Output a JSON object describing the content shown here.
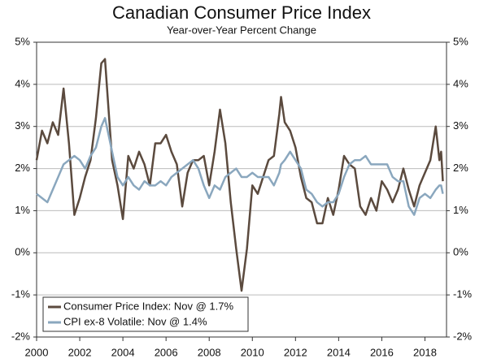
{
  "chart_data": {
    "type": "line",
    "title": "Canadian Consumer Price Index",
    "subtitle": "Year-over-Year Percent Change",
    "x": [
      2000.0,
      2000.25,
      2000.5,
      2000.75,
      2001.0,
      2001.25,
      2001.5,
      2001.75,
      2002.0,
      2002.25,
      2002.5,
      2002.75,
      2003.0,
      2003.17,
      2003.5,
      2003.75,
      2004.0,
      2004.25,
      2004.5,
      2004.75,
      2005.0,
      2005.25,
      2005.5,
      2005.75,
      2006.0,
      2006.25,
      2006.5,
      2006.75,
      2007.0,
      2007.25,
      2007.5,
      2007.75,
      2008.0,
      2008.25,
      2008.5,
      2008.75,
      2009.0,
      2009.25,
      2009.5,
      2009.75,
      2010.0,
      2010.25,
      2010.5,
      2010.75,
      2011.0,
      2011.25,
      2011.33,
      2011.5,
      2011.75,
      2012.0,
      2012.25,
      2012.5,
      2012.75,
      2013.0,
      2013.25,
      2013.5,
      2013.75,
      2014.0,
      2014.25,
      2014.5,
      2014.75,
      2015.0,
      2015.25,
      2015.5,
      2015.75,
      2016.0,
      2016.25,
      2016.5,
      2016.75,
      2017.0,
      2017.25,
      2017.5,
      2017.75,
      2018.0,
      2018.25,
      2018.5,
      2018.67,
      2018.75,
      2018.83
    ],
    "series": [
      {
        "name": "Consumer Price Index: Nov @ 1.7%",
        "color": "#5b4a3e",
        "values": [
          2.2,
          2.9,
          2.6,
          3.1,
          2.8,
          3.9,
          2.6,
          0.9,
          1.3,
          1.8,
          2.2,
          3.2,
          4.5,
          4.6,
          2.2,
          1.6,
          0.8,
          2.3,
          2.0,
          2.4,
          2.1,
          1.6,
          2.6,
          2.6,
          2.8,
          2.4,
          2.1,
          1.1,
          1.9,
          2.2,
          2.2,
          2.3,
          1.6,
          2.4,
          3.4,
          2.6,
          1.2,
          0.1,
          -0.9,
          0.1,
          1.6,
          1.4,
          1.8,
          2.2,
          2.3,
          3.3,
          3.7,
          3.1,
          2.9,
          2.5,
          1.8,
          1.3,
          1.2,
          0.7,
          0.7,
          1.3,
          0.9,
          1.5,
          2.3,
          2.1,
          2.0,
          1.1,
          0.9,
          1.3,
          1.0,
          1.7,
          1.5,
          1.2,
          1.5,
          2.0,
          1.5,
          1.1,
          1.6,
          1.9,
          2.2,
          3.0,
          2.2,
          2.4,
          1.7
        ]
      },
      {
        "name": "CPI ex-8 Volatile: Nov @ 1.4%",
        "color": "#8aa7be",
        "values": [
          1.4,
          1.3,
          1.2,
          1.5,
          1.8,
          2.1,
          2.2,
          2.3,
          2.2,
          2.0,
          2.3,
          2.5,
          3.0,
          3.2,
          2.4,
          1.8,
          1.6,
          1.8,
          1.6,
          1.5,
          1.7,
          1.6,
          1.6,
          1.7,
          1.6,
          1.8,
          1.9,
          2.0,
          2.1,
          2.2,
          2.0,
          1.6,
          1.3,
          1.6,
          1.5,
          1.8,
          1.9,
          2.0,
          1.8,
          1.8,
          1.9,
          1.8,
          1.8,
          1.8,
          1.6,
          1.9,
          2.1,
          2.2,
          2.4,
          2.2,
          2.0,
          1.5,
          1.4,
          1.2,
          1.1,
          1.2,
          1.2,
          1.4,
          1.8,
          2.1,
          2.2,
          2.2,
          2.3,
          2.1,
          2.1,
          2.1,
          2.1,
          1.8,
          1.7,
          1.7,
          1.1,
          0.9,
          1.3,
          1.4,
          1.3,
          1.5,
          1.6,
          1.6,
          1.4
        ]
      }
    ],
    "xlim": [
      2000,
      2019
    ],
    "xticks": [
      2000,
      2002,
      2004,
      2006,
      2008,
      2010,
      2012,
      2014,
      2016,
      2018
    ],
    "ylim": [
      -2,
      5
    ],
    "yticks": [
      {
        "value": -2,
        "label": "-2%"
      },
      {
        "value": -1,
        "label": "-1%"
      },
      {
        "value": 0,
        "label": "0%"
      },
      {
        "value": 1,
        "label": "1%"
      },
      {
        "value": 2,
        "label": "2%"
      },
      {
        "value": 3,
        "label": "3%"
      },
      {
        "value": 4,
        "label": "4%"
      },
      {
        "value": 5,
        "label": "5%"
      }
    ],
    "y2lim": [
      -2,
      5
    ],
    "y2ticks": [
      {
        "value": -2,
        "label": "-2%"
      },
      {
        "value": -1,
        "label": "-1%"
      },
      {
        "value": 0,
        "label": "0%"
      },
      {
        "value": 1,
        "label": "1%"
      },
      {
        "value": 2,
        "label": "2%"
      },
      {
        "value": 3,
        "label": "3%"
      },
      {
        "value": 4,
        "label": "4%"
      },
      {
        "value": 5,
        "label": "5%"
      }
    ],
    "grid": true,
    "legend": "bottom-left"
  }
}
